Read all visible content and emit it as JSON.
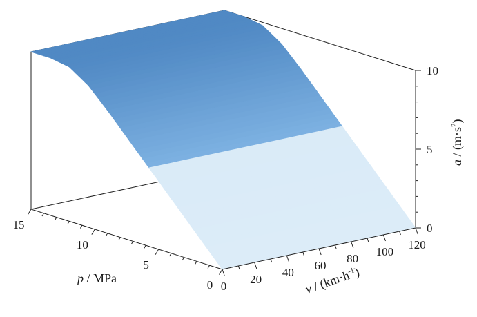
{
  "chart_data": {
    "type": "surface",
    "title": "",
    "x_axis": {
      "label_var": "v",
      "label_unit": " / (km·h",
      "label_sup": "-1",
      "label_tail": ")",
      "range": [
        0,
        120
      ],
      "ticks": [
        "0",
        "20",
        "40",
        "60",
        "80",
        "100",
        "120"
      ]
    },
    "y_axis": {
      "label_var": "p",
      "label_unit": " / MPa",
      "range": [
        0,
        15
      ],
      "ticks": [
        "0",
        "5",
        "10",
        "15"
      ]
    },
    "z_axis": {
      "label_var": "a",
      "label_unit": " / (m·s",
      "label_sup": "2",
      "label_tail": ")",
      "range": [
        0,
        10
      ],
      "ticks": [
        "0",
        "5",
        "10"
      ]
    },
    "surface_profile": {
      "description_axis": "a as a function of p (constant along v)",
      "p": [
        0,
        1.5,
        3,
        4.5,
        6,
        7.5,
        9,
        10.5,
        12,
        13.5,
        15
      ],
      "a": [
        0.0,
        1.3,
        2.6,
        3.9,
        5.2,
        6.5,
        7.8,
        9.0,
        9.8,
        10.0,
        10.0
      ]
    },
    "colors": {
      "low": "#dcecf8",
      "high": "#5089c4",
      "split_value": 4.9
    },
    "grid": false
  }
}
